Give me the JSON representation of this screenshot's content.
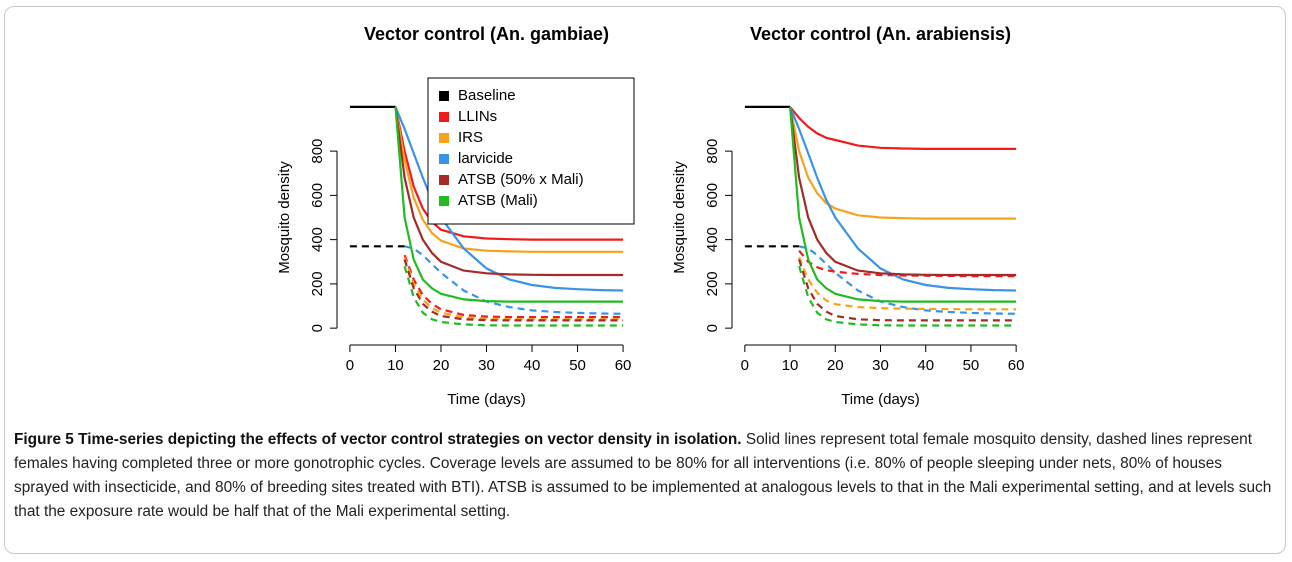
{
  "chart_data": [
    {
      "type": "line",
      "title": "Vector control (An. gambiae)",
      "xlabel": "Time (days)",
      "ylabel": "Mosquito density",
      "x": [
        0,
        5,
        10,
        12,
        14,
        16,
        18,
        20,
        25,
        30,
        35,
        40,
        45,
        50,
        55,
        60
      ],
      "xlim": [
        -2.4,
        62.4
      ],
      "ylim": [
        -40,
        1040
      ],
      "xticks": [
        0,
        10,
        20,
        30,
        40,
        50,
        60
      ],
      "yticks": [
        0,
        200,
        400,
        600,
        800
      ],
      "legend": "topright",
      "series": [
        {
          "name": "Baseline",
          "color": "#000000",
          "dash": false,
          "values": [
            1000,
            1000,
            1000,
            null,
            null,
            null,
            null,
            null,
            null,
            null,
            null,
            null,
            null,
            null,
            null,
            null
          ]
        },
        {
          "name": "LLINs",
          "color": "#ee1c1c",
          "dash": false,
          "values": [
            null,
            null,
            1000,
            800,
            640,
            540,
            480,
            445,
            415,
            405,
            402,
            400,
            400,
            400,
            400,
            400
          ]
        },
        {
          "name": "IRS",
          "color": "#f7a21b",
          "dash": false,
          "values": [
            null,
            null,
            1000,
            760,
            590,
            490,
            430,
            395,
            360,
            350,
            347,
            345,
            345,
            345,
            345,
            345
          ]
        },
        {
          "name": "larvicide",
          "color": "#3a93e8",
          "dash": false,
          "values": [
            null,
            null,
            1000,
            900,
            790,
            680,
            580,
            500,
            360,
            270,
            220,
            195,
            182,
            176,
            172,
            170
          ]
        },
        {
          "name": "ATSB (50% x Mali)",
          "color": "#a52a2a",
          "dash": false,
          "values": [
            null,
            null,
            1000,
            680,
            500,
            400,
            340,
            300,
            260,
            248,
            243,
            241,
            240,
            240,
            240,
            240
          ]
        },
        {
          "name": "ATSB (Mali)",
          "color": "#22bb22",
          "dash": false,
          "values": [
            null,
            null,
            1000,
            500,
            310,
            220,
            180,
            155,
            130,
            122,
            120,
            120,
            120,
            120,
            120,
            120
          ]
        },
        {
          "color": "#000000",
          "dash": true,
          "values": [
            370,
            370,
            370,
            370,
            null,
            null,
            null,
            null,
            null,
            null,
            null,
            null,
            null,
            null,
            null,
            null
          ]
        },
        {
          "color": "#3a93e8",
          "dash": true,
          "values": [
            null,
            null,
            null,
            370,
            360,
            330,
            290,
            250,
            170,
            120,
            95,
            80,
            73,
            69,
            66,
            65
          ]
        },
        {
          "color": "#ee1c1c",
          "dash": true,
          "values": [
            null,
            null,
            null,
            330,
            220,
            150,
            110,
            85,
            60,
            52,
            50,
            50,
            50,
            50,
            50,
            50
          ]
        },
        {
          "color": "#f7a21b",
          "dash": true,
          "values": [
            null,
            null,
            null,
            320,
            200,
            130,
            90,
            70,
            50,
            43,
            41,
            40,
            40,
            40,
            40,
            40
          ]
        },
        {
          "color": "#a52a2a",
          "dash": true,
          "values": [
            null,
            null,
            null,
            310,
            180,
            110,
            75,
            55,
            40,
            36,
            35,
            35,
            35,
            35,
            35,
            35
          ]
        },
        {
          "color": "#22bb22",
          "dash": true,
          "values": [
            null,
            null,
            null,
            280,
            140,
            70,
            40,
            28,
            17,
            13,
            12,
            12,
            12,
            12,
            12,
            12
          ]
        }
      ]
    },
    {
      "type": "line",
      "title": "Vector control (An. arabiensis)",
      "xlabel": "Time (days)",
      "ylabel": "Mosquito density",
      "x": [
        0,
        5,
        10,
        12,
        14,
        16,
        18,
        20,
        25,
        30,
        35,
        40,
        45,
        50,
        55,
        60
      ],
      "xlim": [
        -2.4,
        62.4
      ],
      "ylim": [
        -40,
        1040
      ],
      "xticks": [
        0,
        10,
        20,
        30,
        40,
        50,
        60
      ],
      "yticks": [
        0,
        200,
        400,
        600,
        800
      ],
      "series": [
        {
          "color": "#000000",
          "dash": false,
          "values": [
            1000,
            1000,
            1000,
            null,
            null,
            null,
            null,
            null,
            null,
            null,
            null,
            null,
            null,
            null,
            null,
            null
          ]
        },
        {
          "color": "#ee1c1c",
          "dash": false,
          "values": [
            null,
            null,
            1000,
            950,
            910,
            880,
            860,
            850,
            825,
            815,
            812,
            810,
            810,
            810,
            810,
            810
          ]
        },
        {
          "color": "#f7a21b",
          "dash": false,
          "values": [
            null,
            null,
            1000,
            800,
            680,
            610,
            565,
            540,
            510,
            500,
            497,
            495,
            495,
            495,
            495,
            495
          ]
        },
        {
          "color": "#3a93e8",
          "dash": false,
          "values": [
            null,
            null,
            1000,
            900,
            790,
            680,
            580,
            500,
            360,
            270,
            220,
            195,
            182,
            176,
            172,
            170
          ]
        },
        {
          "color": "#a52a2a",
          "dash": false,
          "values": [
            null,
            null,
            1000,
            680,
            500,
            400,
            340,
            300,
            260,
            248,
            243,
            241,
            240,
            240,
            240,
            240
          ]
        },
        {
          "color": "#22bb22",
          "dash": false,
          "values": [
            null,
            null,
            1000,
            500,
            310,
            220,
            180,
            155,
            130,
            122,
            120,
            120,
            120,
            120,
            120,
            120
          ]
        },
        {
          "color": "#000000",
          "dash": true,
          "values": [
            370,
            370,
            370,
            370,
            null,
            null,
            null,
            null,
            null,
            null,
            null,
            null,
            null,
            null,
            null,
            null
          ]
        },
        {
          "color": "#3a93e8",
          "dash": true,
          "values": [
            null,
            null,
            null,
            370,
            360,
            330,
            290,
            250,
            170,
            120,
            95,
            80,
            73,
            69,
            66,
            65
          ]
        },
        {
          "color": "#ee1c1c",
          "dash": true,
          "values": [
            null,
            null,
            null,
            350,
            300,
            275,
            262,
            255,
            245,
            240,
            238,
            237,
            236,
            235,
            235,
            235
          ]
        },
        {
          "color": "#f7a21b",
          "dash": true,
          "values": [
            null,
            null,
            null,
            320,
            220,
            160,
            125,
            108,
            95,
            90,
            88,
            87,
            86,
            85,
            85,
            85
          ]
        },
        {
          "color": "#a52a2a",
          "dash": true,
          "values": [
            null,
            null,
            null,
            310,
            180,
            110,
            75,
            55,
            40,
            36,
            35,
            35,
            35,
            35,
            35,
            35
          ]
        },
        {
          "color": "#22bb22",
          "dash": true,
          "values": [
            null,
            null,
            null,
            280,
            140,
            70,
            40,
            28,
            17,
            13,
            12,
            12,
            12,
            12,
            12,
            12
          ]
        }
      ]
    }
  ],
  "caption": {
    "label": "Figure 5",
    "title": "Time-series depicting the effects of vector control strategies on vector density in isolation.",
    "text": "Solid lines represent total female mosquito density, dashed lines represent females having completed three or more gonotrophic cycles. Coverage levels are assumed to be 80% for all interventions (i.e. 80% of people sleeping under nets, 80% of houses sprayed with insecticide, and 80% of breeding sites treated with BTI). ATSB is assumed to be implemented at analogous levels to that in the Mali experimental setting, and at levels such that the exposure rate would be half that of the Mali experimental setting."
  }
}
